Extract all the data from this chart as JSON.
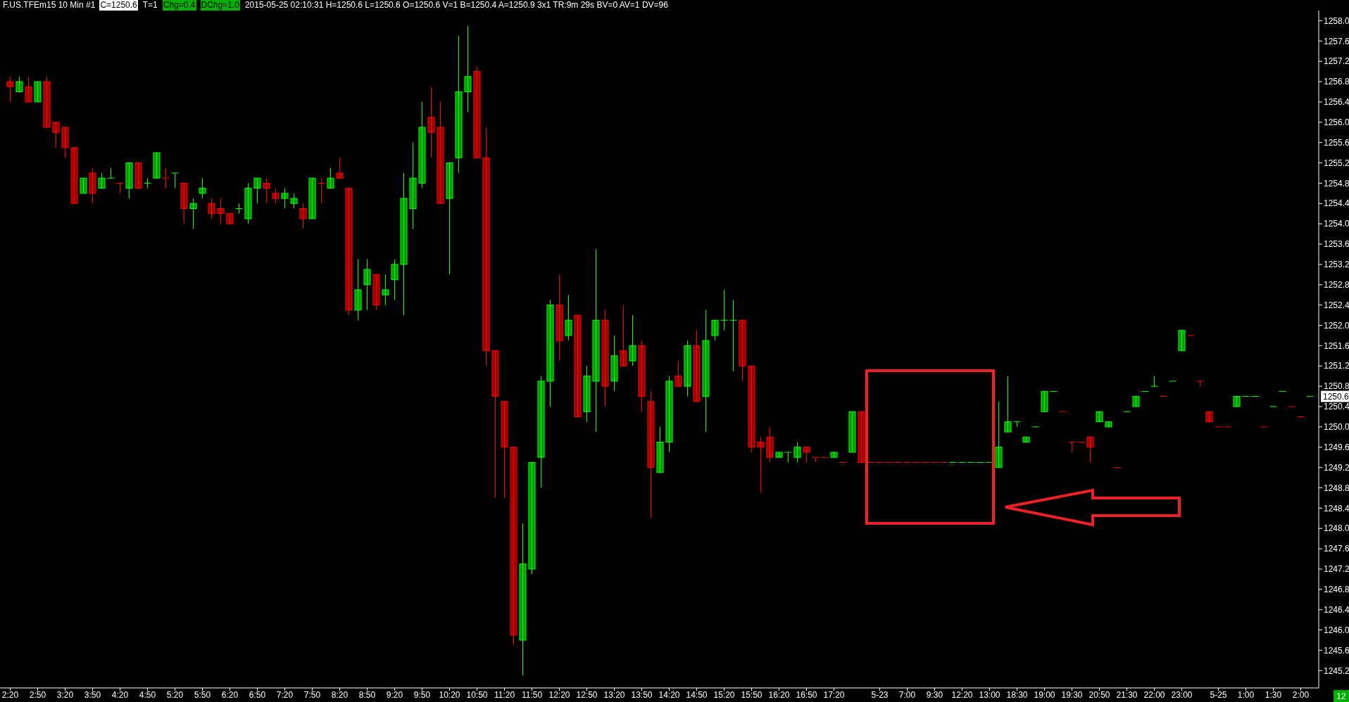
{
  "chart_data": {
    "type": "candlestick",
    "title": "F.US.TFEm15  10 Min  #1",
    "annotations": [
      "C=1250.6",
      "T=1",
      "Chg=0.4",
      "DChg=1.0",
      "2015-05-25 02:10:31 H=1250.6 L=1250.6 O=1250.6 V=1 B=1250.4 A=1250.9 3x1 TR:9m 29s BV=0 AV=1 DV=96",
      "12",
      "1250.6"
    ],
    "categories": [
      "2:20",
      null,
      null,
      "2:50",
      null,
      null,
      "3:20",
      null,
      null,
      "3:50",
      null,
      null,
      "4:20",
      null,
      null,
      "4:50",
      null,
      null,
      "5:20",
      null,
      null,
      "5:50",
      null,
      null,
      "6:20",
      null,
      null,
      "6:50",
      null,
      null,
      "7:20",
      null,
      null,
      "7:50",
      null,
      null,
      "8:20",
      null,
      null,
      "8:50",
      null,
      null,
      "9:20",
      null,
      null,
      "9:50",
      null,
      null,
      "10:20",
      null,
      null,
      "10:50",
      null,
      null,
      "11:20",
      null,
      null,
      "11:50",
      null,
      null,
      "12:20",
      null,
      null,
      "12:50",
      null,
      null,
      "13:20",
      null,
      null,
      "13:50",
      null,
      null,
      "14:20",
      null,
      null,
      "14:50",
      null,
      null,
      "15:20",
      null,
      null,
      "15:50",
      null,
      null,
      "16:20",
      null,
      null,
      "16:50",
      null,
      null,
      "17:20",
      null,
      null,
      null,
      null,
      "5-23",
      null,
      null,
      "7:00",
      null,
      null,
      "9:30",
      null,
      null,
      "12:20",
      null,
      null,
      "13:00",
      null,
      null,
      "18:30",
      null,
      null,
      "19:00",
      null,
      null,
      "19:30",
      null,
      null,
      "20:50",
      null,
      null,
      "21:30",
      null,
      null,
      "22:00",
      null,
      null,
      "23:00",
      null,
      null,
      null,
      "5-25",
      null,
      null,
      "1:00",
      null,
      null,
      "1:30",
      null,
      null,
      "2:00",
      null
    ],
    "ohlc": [
      [
        1256.8,
        1256.9,
        1256.4,
        1256.7
      ],
      [
        1256.6,
        1256.9,
        1256.6,
        1256.8
      ],
      [
        1256.7,
        1256.9,
        1256.4,
        1256.4
      ],
      [
        1256.4,
        1256.8,
        1256.4,
        1256.8
      ],
      [
        1256.8,
        1256.9,
        1255.9,
        1255.9
      ],
      [
        1256.0,
        1256.0,
        1255.5,
        1255.8
      ],
      [
        1255.9,
        1255.9,
        1255.3,
        1255.5
      ],
      [
        1255.5,
        1255.5,
        1254.4,
        1254.4
      ],
      [
        1254.6,
        1254.9,
        1254.6,
        1254.9
      ],
      [
        1255.0,
        1255.1,
        1254.4,
        1254.6
      ],
      [
        1254.7,
        1255.0,
        1254.7,
        1254.9
      ],
      [
        1254.9,
        1255.1,
        1254.9,
        1254.9
      ],
      [
        1254.8,
        1254.8,
        1254.6,
        1254.8
      ],
      [
        1254.7,
        1255.2,
        1254.5,
        1255.2
      ],
      [
        1255.2,
        1255.2,
        1254.7,
        1254.7
      ],
      [
        1254.8,
        1254.9,
        1254.7,
        1254.8
      ],
      [
        1254.9,
        1255.4,
        1254.9,
        1255.4
      ],
      [
        1254.9,
        1255.1,
        1254.7,
        1254.9
      ],
      [
        1255.0,
        1255.0,
        1254.7,
        1255.0
      ],
      [
        1254.8,
        1254.8,
        1254.0,
        1254.3
      ],
      [
        1254.3,
        1254.5,
        1253.9,
        1254.4
      ],
      [
        1254.6,
        1254.9,
        1254.5,
        1254.7
      ],
      [
        1254.4,
        1254.5,
        1254.1,
        1254.2
      ],
      [
        1254.3,
        1254.5,
        1254.0,
        1254.2
      ],
      [
        1254.2,
        1254.2,
        1254.0,
        1254.0
      ],
      [
        1254.3,
        1254.4,
        1254.2,
        1254.3
      ],
      [
        1254.1,
        1254.8,
        1254.0,
        1254.7
      ],
      [
        1254.7,
        1254.9,
        1254.4,
        1254.9
      ],
      [
        1254.8,
        1254.9,
        1254.4,
        1254.7
      ],
      [
        1254.6,
        1254.7,
        1254.4,
        1254.5
      ],
      [
        1254.5,
        1254.7,
        1254.3,
        1254.6
      ],
      [
        1254.4,
        1254.6,
        1254.3,
        1254.5
      ],
      [
        1254.3,
        1254.4,
        1253.9,
        1254.1
      ],
      [
        1254.1,
        1254.9,
        1254.1,
        1254.9
      ],
      [
        1254.8,
        1254.9,
        1254.4,
        1254.8
      ],
      [
        1254.7,
        1255.1,
        1254.7,
        1254.9
      ],
      [
        1255.0,
        1255.3,
        1254.9,
        1254.9
      ],
      [
        1254.7,
        1254.7,
        1252.2,
        1252.3
      ],
      [
        1252.3,
        1253.3,
        1252.1,
        1252.7
      ],
      [
        1252.8,
        1253.3,
        1252.3,
        1253.1
      ],
      [
        1253.0,
        1253.0,
        1252.3,
        1252.4
      ],
      [
        1252.6,
        1253.0,
        1252.4,
        1252.7
      ],
      [
        1252.9,
        1253.3,
        1252.5,
        1253.2
      ],
      [
        1253.2,
        1255.0,
        1252.2,
        1254.5
      ],
      [
        1254.3,
        1255.6,
        1253.9,
        1254.9
      ],
      [
        1254.8,
        1256.4,
        1254.7,
        1255.9
      ],
      [
        1256.1,
        1256.7,
        1255.3,
        1255.8
      ],
      [
        1255.9,
        1256.4,
        1254.4,
        1254.4
      ],
      [
        1254.5,
        1255.2,
        1253.0,
        1255.2
      ],
      [
        1255.3,
        1257.7,
        1255.0,
        1256.6
      ],
      [
        1256.6,
        1257.9,
        1256.2,
        1256.9
      ],
      [
        1257.0,
        1257.1,
        1255.3,
        1255.3
      ],
      [
        1255.3,
        1255.9,
        1251.2,
        1251.5
      ],
      [
        1251.5,
        1251.5,
        1248.6,
        1250.6
      ],
      [
        1250.5,
        1250.5,
        1248.6,
        1249.6
      ],
      [
        1249.6,
        1249.6,
        1245.7,
        1245.9
      ],
      [
        1245.8,
        1248.1,
        1245.1,
        1247.3
      ],
      [
        1247.2,
        1249.3,
        1247.1,
        1249.3
      ],
      [
        1249.4,
        1251.0,
        1248.8,
        1250.9
      ],
      [
        1250.9,
        1252.5,
        1250.4,
        1252.4
      ],
      [
        1252.4,
        1253.0,
        1251.3,
        1251.7
      ],
      [
        1251.8,
        1252.6,
        1251.7,
        1252.1
      ],
      [
        1252.2,
        1252.2,
        1250.2,
        1250.2
      ],
      [
        1250.3,
        1251.2,
        1250.1,
        1251.0
      ],
      [
        1250.9,
        1253.5,
        1249.9,
        1252.1
      ],
      [
        1252.1,
        1252.3,
        1250.4,
        1250.8
      ],
      [
        1250.9,
        1251.8,
        1250.7,
        1251.4
      ],
      [
        1251.5,
        1252.4,
        1251.2,
        1251.2
      ],
      [
        1251.3,
        1252.2,
        1251.2,
        1251.6
      ],
      [
        1251.6,
        1251.7,
        1250.3,
        1250.6
      ],
      [
        1250.5,
        1250.7,
        1248.2,
        1249.2
      ],
      [
        1249.1,
        1250.0,
        1249.1,
        1249.7
      ],
      [
        1249.7,
        1251.0,
        1249.5,
        1250.9
      ],
      [
        1251.0,
        1251.3,
        1250.8,
        1250.8
      ],
      [
        1250.8,
        1251.7,
        1250.6,
        1251.6
      ],
      [
        1251.6,
        1251.9,
        1250.5,
        1250.5
      ],
      [
        1250.6,
        1252.3,
        1249.9,
        1251.7
      ],
      [
        1251.8,
        1252.1,
        1251.7,
        1252.1
      ],
      [
        1252.1,
        1252.7,
        1251.9,
        1252.1
      ],
      [
        1252.1,
        1252.5,
        1251.1,
        1252.1
      ],
      [
        1252.1,
        1252.1,
        1250.9,
        1251.2
      ],
      [
        1251.2,
        1251.2,
        1249.5,
        1249.6
      ],
      [
        1249.7,
        1249.8,
        1248.7,
        1249.6
      ],
      [
        1249.8,
        1250.0,
        1249.3,
        1249.4
      ],
      [
        1249.4,
        1249.5,
        1249.4,
        1249.5
      ],
      [
        1249.5,
        1249.5,
        1249.3,
        1249.5
      ],
      [
        1249.4,
        1249.7,
        1249.3,
        1249.6
      ],
      [
        1249.6,
        1249.6,
        1249.3,
        1249.5
      ],
      [
        1249.4,
        1249.4,
        1249.3,
        1249.4
      ],
      [
        1249.4,
        1249.4,
        1249.4,
        1249.4
      ],
      [
        1249.4,
        1249.5,
        1249.4,
        1249.5
      ],
      [
        1249.3,
        1249.3,
        1249.3,
        1249.3
      ],
      [
        1249.5,
        1250.3,
        1249.5,
        1250.3
      ],
      [
        1250.3,
        1250.3,
        1249.3,
        1249.3
      ],
      [
        1249.3,
        1249.3,
        1249.3,
        1249.3
      ],
      [
        1249.3,
        1249.3,
        1249.3,
        1249.3
      ],
      [
        1249.3,
        1249.3,
        1249.3,
        1249.3
      ],
      [
        1249.3,
        1249.3,
        1249.3,
        1249.3
      ],
      [
        1249.3,
        1249.3,
        1249.3,
        1249.3
      ],
      [
        1249.3,
        1249.3,
        1249.3,
        1249.3
      ],
      [
        1249.3,
        1249.3,
        1249.3,
        1249.3
      ],
      [
        1249.3,
        1249.3,
        1249.3,
        1249.3
      ],
      [
        1249.3,
        1249.3,
        1249.3,
        1249.3
      ],
      [
        1249.3,
        1249.3,
        1249.3,
        1249.3
      ],
      [
        1249.3,
        1249.3,
        1249.3,
        1249.3
      ],
      [
        1249.3,
        1249.3,
        1249.3,
        1249.3
      ],
      [
        1249.3,
        1249.3,
        1249.3,
        1249.3
      ],
      [
        1249.3,
        1249.3,
        1249.3,
        1249.3
      ],
      [
        1249.2,
        1250.5,
        1249.2,
        1249.6
      ],
      [
        1249.9,
        1251.0,
        1249.9,
        1250.1
      ],
      [
        1250.1,
        1250.1,
        1250.0,
        1250.1
      ],
      [
        1249.7,
        1249.8,
        1249.7,
        1249.8
      ],
      [
        1250.0,
        1250.0,
        1250.0,
        1250.0
      ],
      [
        1250.3,
        1250.7,
        1250.3,
        1250.7
      ],
      [
        1250.7,
        1250.7,
        1250.7,
        1250.7
      ],
      [
        1250.3,
        1250.3,
        1250.3,
        1250.3
      ],
      [
        1249.7,
        1249.7,
        1249.5,
        1249.7
      ],
      [
        1249.7,
        1249.7,
        1249.7,
        1249.7
      ],
      [
        1249.8,
        1249.8,
        1249.3,
        1249.6
      ],
      [
        1250.1,
        1250.3,
        1250.1,
        1250.3
      ],
      [
        1250.0,
        1250.1,
        1250.0,
        1250.1
      ],
      [
        1249.2,
        1249.2,
        1249.2,
        1249.2
      ],
      [
        1250.3,
        1250.3,
        1250.3,
        1250.3
      ],
      [
        1250.4,
        1250.6,
        1250.4,
        1250.6
      ],
      [
        1250.7,
        1250.7,
        1250.7,
        1250.7
      ],
      [
        1250.8,
        1251.0,
        1250.8,
        1250.8
      ],
      [
        1250.6,
        1250.6,
        1250.6,
        1250.6
      ],
      [
        1250.9,
        1250.9,
        1250.9,
        1250.9
      ],
      [
        1251.5,
        1251.9,
        1251.5,
        1251.9
      ],
      [
        1251.8,
        1251.8,
        1251.8,
        1251.8
      ],
      [
        1250.9,
        1250.9,
        1250.8,
        1250.9
      ],
      [
        1250.3,
        1250.3,
        1250.1,
        1250.1
      ],
      [
        1250.0,
        1250.0,
        1250.0,
        1250.0
      ],
      [
        1250.0,
        1250.0,
        1250.0,
        1250.0
      ],
      [
        1250.4,
        1250.6,
        1250.4,
        1250.6
      ],
      [
        1250.6,
        1250.6,
        1250.6,
        1250.6
      ],
      [
        1250.6,
        1250.6,
        1250.6,
        1250.6
      ],
      [
        1250.0,
        1250.0,
        1250.0,
        1250.0
      ],
      [
        1250.4,
        1250.4,
        1250.4,
        1250.4
      ],
      [
        1250.7,
        1250.7,
        1250.7,
        1250.7
      ],
      [
        1250.4,
        1250.4,
        1250.4,
        1250.4
      ],
      [
        1250.2,
        1250.2,
        1250.2,
        1250.2
      ],
      [
        1250.6,
        1250.6,
        1250.6,
        1250.6
      ]
    ],
    "colors": [
      "#ff0000",
      "#00ff00",
      "#ff0000",
      "#00ff00",
      "#ff0000",
      "#ff0000",
      "#ff0000",
      "#ff0000",
      "#00ff00",
      "#ff0000",
      "#00ff00",
      "#00ff00",
      "#ff0000",
      "#00ff00",
      "#ff0000",
      "#00ff00",
      "#00ff00",
      "#ff0000",
      "#00ff00",
      "#ff0000",
      "#00ff00",
      "#00ff00",
      "#ff0000",
      "#ff0000",
      "#ff0000",
      "#00ff00",
      "#00ff00",
      "#00ff00",
      "#ff0000",
      "#ff0000",
      "#00ff00",
      "#00ff00",
      "#ff0000",
      "#00ff00",
      "#ff0000",
      "#00ff00",
      "#ff0000",
      "#ff0000",
      "#00ff00",
      "#00ff00",
      "#ff0000",
      "#00ff00",
      "#00ff00",
      "#00ff00",
      "#00ff00",
      "#00ff00",
      "#ff0000",
      "#ff0000",
      "#00ff00",
      "#00ff00",
      "#00ff00",
      "#ff0000",
      "#ff0000",
      "#ff0000",
      "#ff0000",
      "#ff0000",
      "#00ff00",
      "#00ff00",
      "#00ff00",
      "#00ff00",
      "#ff0000",
      "#00ff00",
      "#ff0000",
      "#00ff00",
      "#00ff00",
      "#ff0000",
      "#00ff00",
      "#ff0000",
      "#00ff00",
      "#ff0000",
      "#ff0000",
      "#00ff00",
      "#00ff00",
      "#ff0000",
      "#00ff00",
      "#ff0000",
      "#00ff00",
      "#00ff00",
      "#00ff00",
      "#00ff00",
      "#ff0000",
      "#ff0000",
      "#ff0000",
      "#ff0000",
      "#00ff00",
      "#00ff00",
      "#00ff00",
      "#ff0000",
      "#ff0000",
      "#ff0000",
      "#00ff00",
      "#ff0000",
      "#00ff00",
      "#ff0000",
      "#ff0000",
      "#ff0000",
      "#ff0000",
      "#ff0000",
      "#ff0000",
      "#ff0000",
      "#ff0000",
      "#ff0000",
      "#ff0000",
      "#00ff00",
      "#00ff00",
      "#00ff00",
      "#00ff00",
      "#00ff00",
      "#00ff00",
      "#00ff00",
      "#00ff00",
      "#00ff00",
      "#00ff00",
      "#00ff00",
      "#00ff00",
      "#ff0000",
      "#ff0000",
      "#ff0000",
      "#ff0000",
      "#00ff00",
      "#00ff00",
      "#ff0000",
      "#00ff00",
      "#00ff00",
      "#00ff00",
      "#00ff00",
      "#ff0000",
      "#00ff00",
      "#00ff00",
      "#ff0000",
      "#ff0000",
      "#ff0000",
      "#ff0000",
      "#ff0000",
      "#00ff00",
      "#00ff00",
      "#00ff00",
      "#ff0000",
      "#00ff00",
      "#00ff00",
      "#ff0000",
      "#ff0000",
      "#00ff00"
    ],
    "ylim": [
      1244.9,
      1258.2
    ],
    "yticks": [
      1245.2,
      1245.6,
      {
        "value": 1246,
        "label": "1246.0"
      },
      1246.4,
      1246.8,
      1247.2,
      1247.6,
      {
        "value": 1248,
        "label": "1248.0"
      },
      1248.4,
      1248.8,
      1249.2,
      1249.6,
      {
        "value": 1250,
        "label": "1250.0"
      },
      1250.4,
      1250.8,
      1251.2,
      1251.6,
      {
        "value": 1252,
        "label": "1252.0"
      },
      1252.4,
      1252.8,
      1253.2,
      1253.6,
      {
        "value": 1254,
        "label": "1254.0"
      },
      1254.4,
      1254.8,
      1255.2,
      1255.6,
      {
        "value": 1256,
        "label": "1256.0"
      },
      1256.4,
      1256.8,
      1257.2,
      1257.6,
      {
        "value": 1258,
        "label": "1258.0"
      }
    ]
  }
}
